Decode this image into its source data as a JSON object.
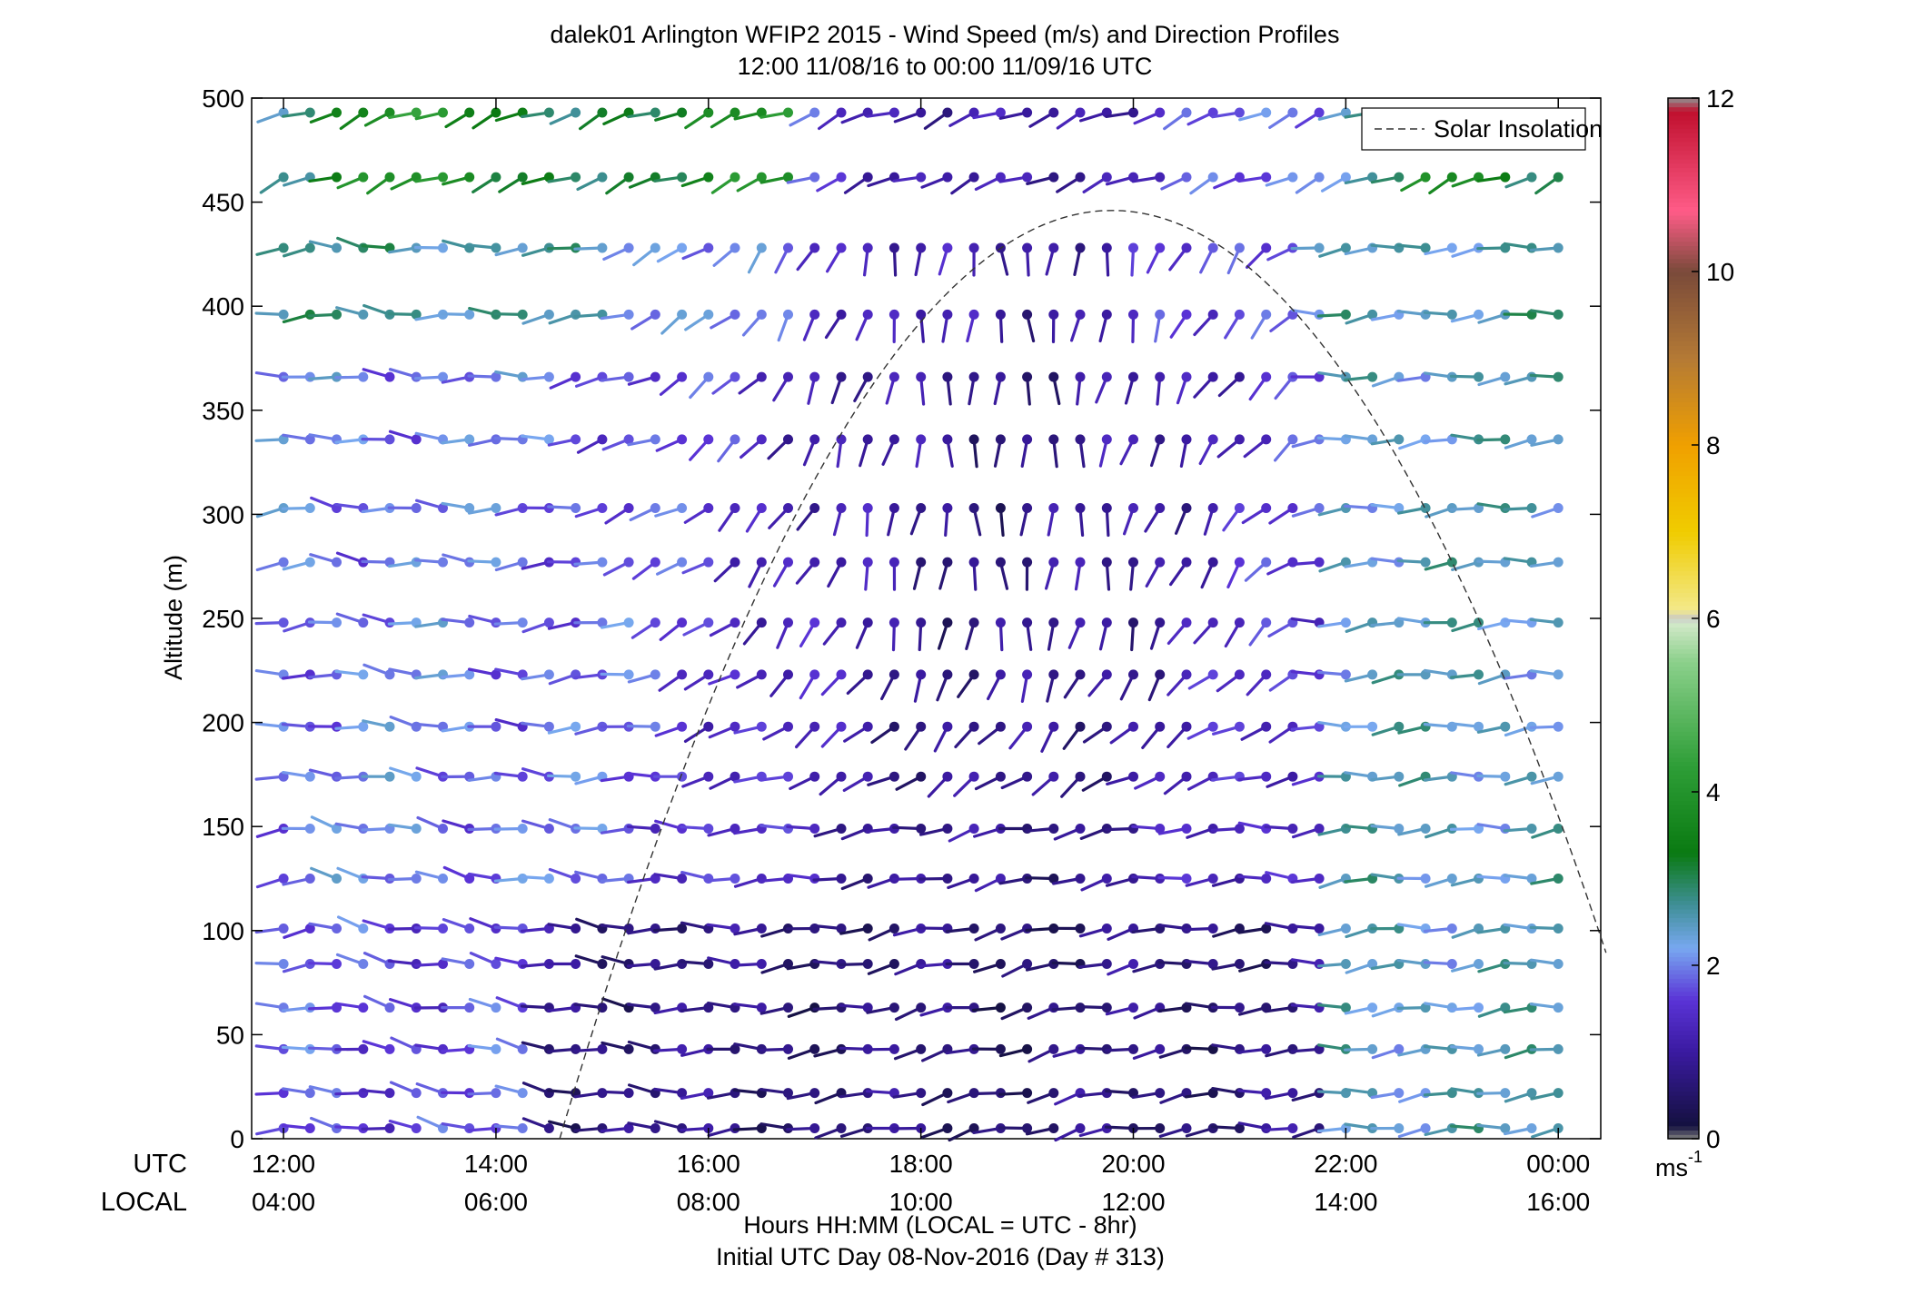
{
  "chart_data": {
    "type": "wind-barb-profile",
    "title": "dalek01 Arlington WFIP2 2015 - Wind Speed (m/s) and Direction Profiles",
    "subtitle": "12:00 11/08/16 to 00:00 11/09/16  UTC",
    "ylabel": "Altitude (m)",
    "xlabel": "Hours HH:MM  (LOCAL = UTC - 8hr)",
    "xlabel2": "Initial UTC Day 08-Nov-2016 (Day # 313)",
    "row_label_utc": "UTC",
    "row_label_local": "LOCAL",
    "x_utc_ticks": [
      "12:00",
      "14:00",
      "16:00",
      "18:00",
      "20:00",
      "22:00",
      "00:00"
    ],
    "x_local_ticks": [
      "04:00",
      "06:00",
      "08:00",
      "10:00",
      "12:00",
      "14:00",
      "16:00"
    ],
    "x_tick_hours": [
      12,
      14,
      16,
      18,
      20,
      22,
      24
    ],
    "xlim_hours": [
      11.7,
      24.4
    ],
    "y_ticks": [
      0,
      50,
      100,
      150,
      200,
      250,
      300,
      350,
      400,
      450,
      500
    ],
    "ylim": [
      0,
      500
    ],
    "legend": {
      "label": "Solar Insolation",
      "placement": "top-right"
    },
    "solar_insolation": {
      "rise_hour": 14.6,
      "peak_hour": 19.8,
      "peak_altitude": 446,
      "set_hour": 24.5
    },
    "colorbar": {
      "ticks": [
        0,
        2,
        4,
        6,
        8,
        10,
        12
      ],
      "range": [
        0,
        12
      ],
      "unit_base": "ms",
      "unit_exp": "-1",
      "stops": [
        {
          "v": 0,
          "c": "#7f7f7f"
        },
        {
          "v": 0.15,
          "c": "#14113f"
        },
        {
          "v": 1.0,
          "c": "#3a1aa0"
        },
        {
          "v": 1.6,
          "c": "#5a33d6"
        },
        {
          "v": 2.2,
          "c": "#78a8f0"
        },
        {
          "v": 2.7,
          "c": "#3f8f96"
        },
        {
          "v": 3.3,
          "c": "#0a7a12"
        },
        {
          "v": 4.3,
          "c": "#2e9e37"
        },
        {
          "v": 5.5,
          "c": "#8bd08b"
        },
        {
          "v": 5.95,
          "c": "#d3e9c9"
        },
        {
          "v": 6.0,
          "c": "#c8c8c8"
        },
        {
          "v": 6.1,
          "c": "#f3e98a"
        },
        {
          "v": 7.0,
          "c": "#f0cc00"
        },
        {
          "v": 8.0,
          "c": "#f0a000"
        },
        {
          "v": 9.0,
          "c": "#b47a35"
        },
        {
          "v": 10.0,
          "c": "#7a4a3a"
        },
        {
          "v": 10.7,
          "c": "#ff5c88"
        },
        {
          "v": 11.85,
          "c": "#c0102e"
        },
        {
          "v": 12,
          "c": "#909090"
        }
      ]
    },
    "wind_field": {
      "start_hour": 12.0,
      "step_minutes": 15,
      "count": 49,
      "altitudes": [
        5,
        22,
        43,
        63,
        84,
        101,
        125,
        149,
        174,
        198,
        223,
        248,
        277,
        303,
        336,
        366,
        396,
        428,
        462,
        493
      ],
      "note": "approximate speeds (m/s) and direction-from (deg) read from the barb colors and orientations"
    }
  }
}
